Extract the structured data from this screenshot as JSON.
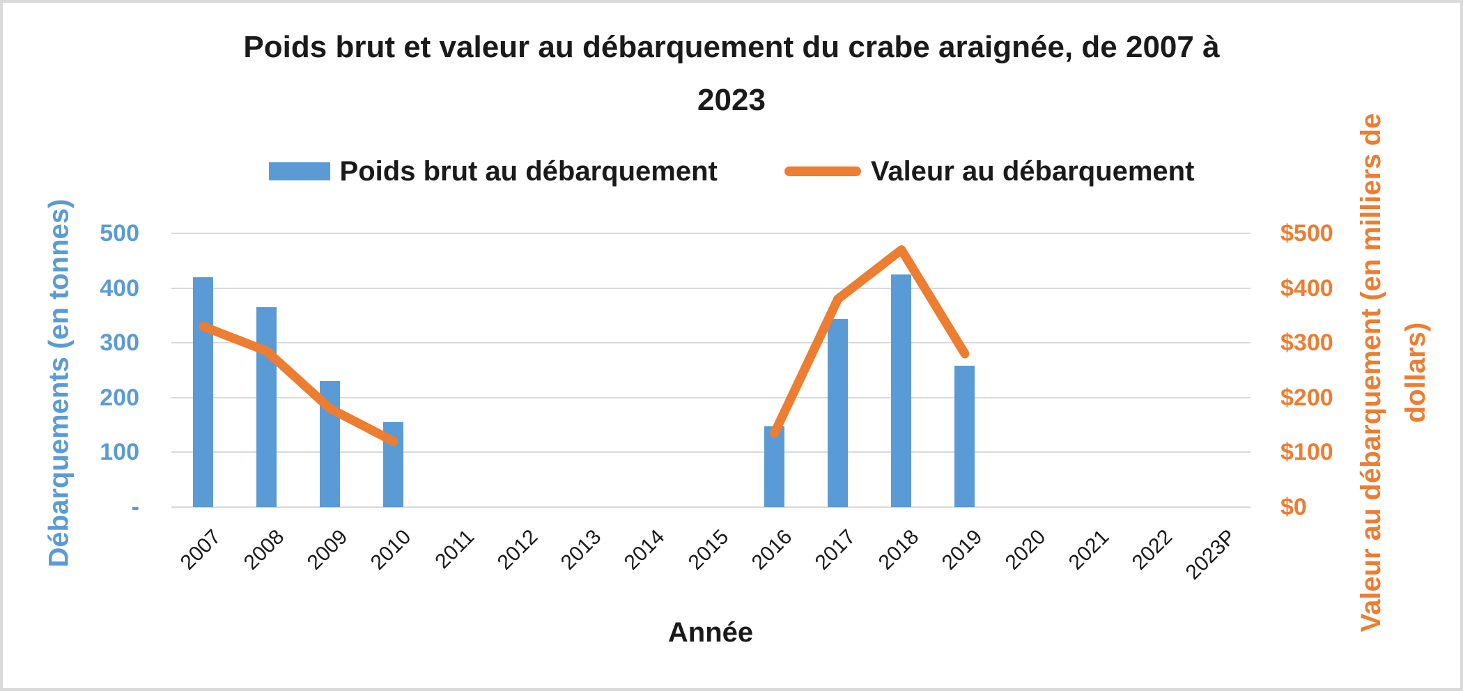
{
  "display": {
    "title": "Poids brut et valeur au débarquement du crabe araignée, de 2007 à\n2023",
    "ylabel_right": "Valeur au débarquement (en milliers de\ndollars)"
  },
  "chart_data": {
    "type": "combo-bar-line",
    "title": "Poids brut et valeur au débarquement du crabe araignée, de 2007 à 2023",
    "xlabel": "Année",
    "grid": true,
    "gridline_color": "#D9D9D9",
    "legend_position": "top",
    "axes": {
      "left": {
        "label": "Débarquements (en tonnes)",
        "color": "#5B9BD5",
        "range": [
          0,
          500
        ],
        "tick_step": 100,
        "tick_labels_top_to_bottom": [
          "500",
          "400",
          "300",
          "200",
          "100",
          "-"
        ]
      },
      "right": {
        "label": "Valeur au débarquement (en milliers de dollars)",
        "color": "#ED7D31",
        "range": [
          0,
          500
        ],
        "tick_step": 100,
        "tick_labels_top_to_bottom": [
          "$500",
          "$400",
          "$300",
          "$200",
          "$100",
          "$0"
        ]
      }
    },
    "categories": [
      "2007",
      "2008",
      "2009",
      "2010",
      "2011",
      "2012",
      "2013",
      "2014",
      "2015",
      "2016",
      "2017",
      "2018",
      "2019",
      "2020",
      "2021",
      "2022",
      "2023P"
    ],
    "series": [
      {
        "name": "Poids brut au débarquement",
        "type": "bar",
        "axis": "left",
        "color": "#5B9BD5",
        "values": [
          420,
          365,
          230,
          155,
          null,
          null,
          null,
          null,
          null,
          148,
          343,
          425,
          258,
          null,
          null,
          null,
          null
        ]
      },
      {
        "name": "Valeur au débarquement",
        "type": "line",
        "axis": "right",
        "color": "#ED7D31",
        "values": [
          330,
          285,
          180,
          120,
          null,
          null,
          null,
          null,
          null,
          135,
          380,
          470,
          280,
          null,
          null,
          null,
          null
        ]
      }
    ]
  }
}
